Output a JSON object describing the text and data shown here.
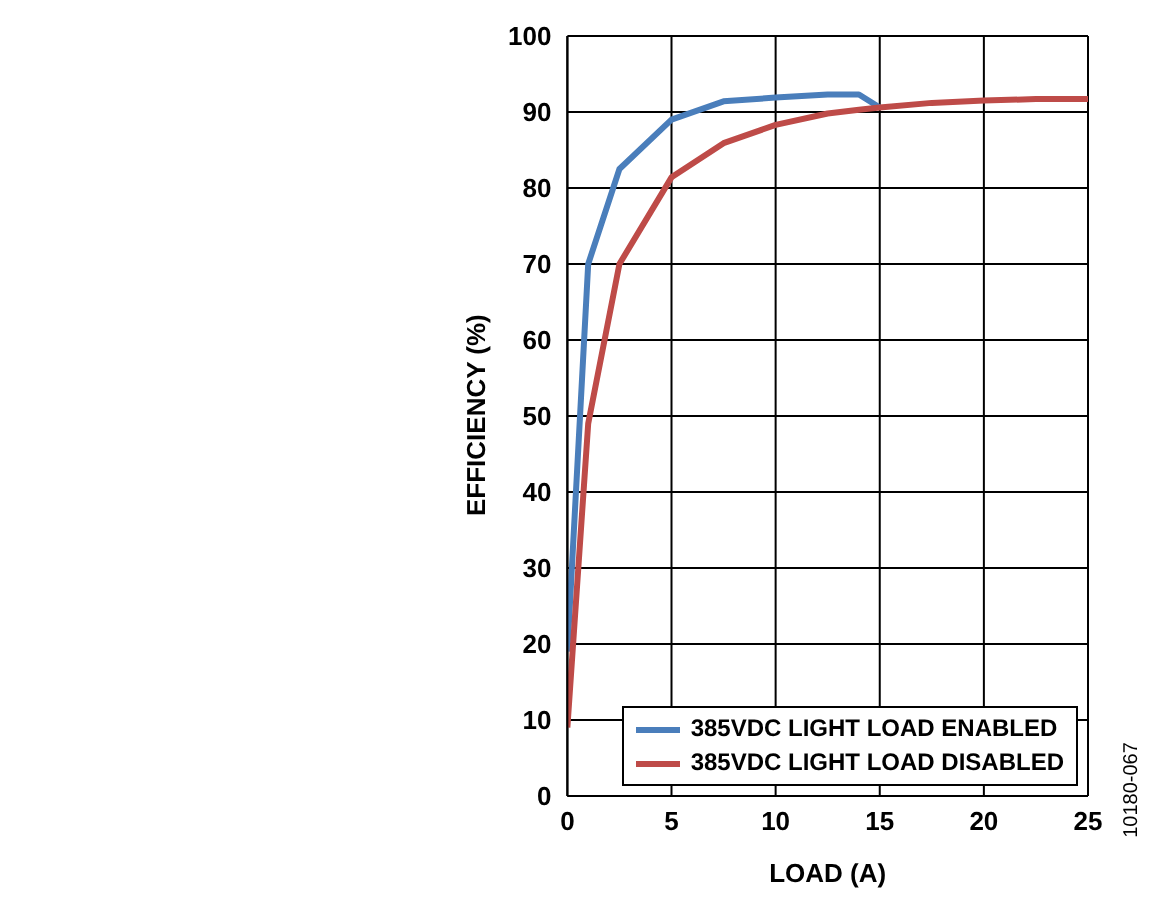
{
  "chart_data": {
    "type": "line",
    "xlabel": "LOAD (A)",
    "ylabel": "EFFICIENCY (%)",
    "x": [
      0,
      1,
      2.5,
      5,
      7.5,
      10,
      12.5,
      14,
      15,
      17.5,
      20,
      22.5,
      25
    ],
    "series": [
      {
        "name": "385VDC LIGHT LOAD ENABLED",
        "color": "#4a7ebb",
        "values": [
          19,
          70,
          82.5,
          89,
          91.4,
          91.9,
          92.3,
          92.3,
          90.6,
          null,
          null,
          null,
          null
        ]
      },
      {
        "name": "385VDC LIGHT LOAD DISABLED",
        "color": "#be4b48",
        "values": [
          9,
          49,
          70,
          81.4,
          85.9,
          88.3,
          89.8,
          90.3,
          90.6,
          91.2,
          91.5,
          91.7,
          91.7
        ]
      }
    ],
    "xlim": [
      0,
      25
    ],
    "xticks": [
      0,
      5,
      10,
      15,
      20,
      25
    ],
    "ylim": [
      0,
      100
    ],
    "yticks": [
      0,
      10,
      20,
      30,
      40,
      50,
      60,
      70,
      80,
      90,
      100
    ],
    "grid": true,
    "legend": "bottom right",
    "marker": "none",
    "line_style": "solid",
    "annotations": [
      "10180-067"
    ]
  }
}
